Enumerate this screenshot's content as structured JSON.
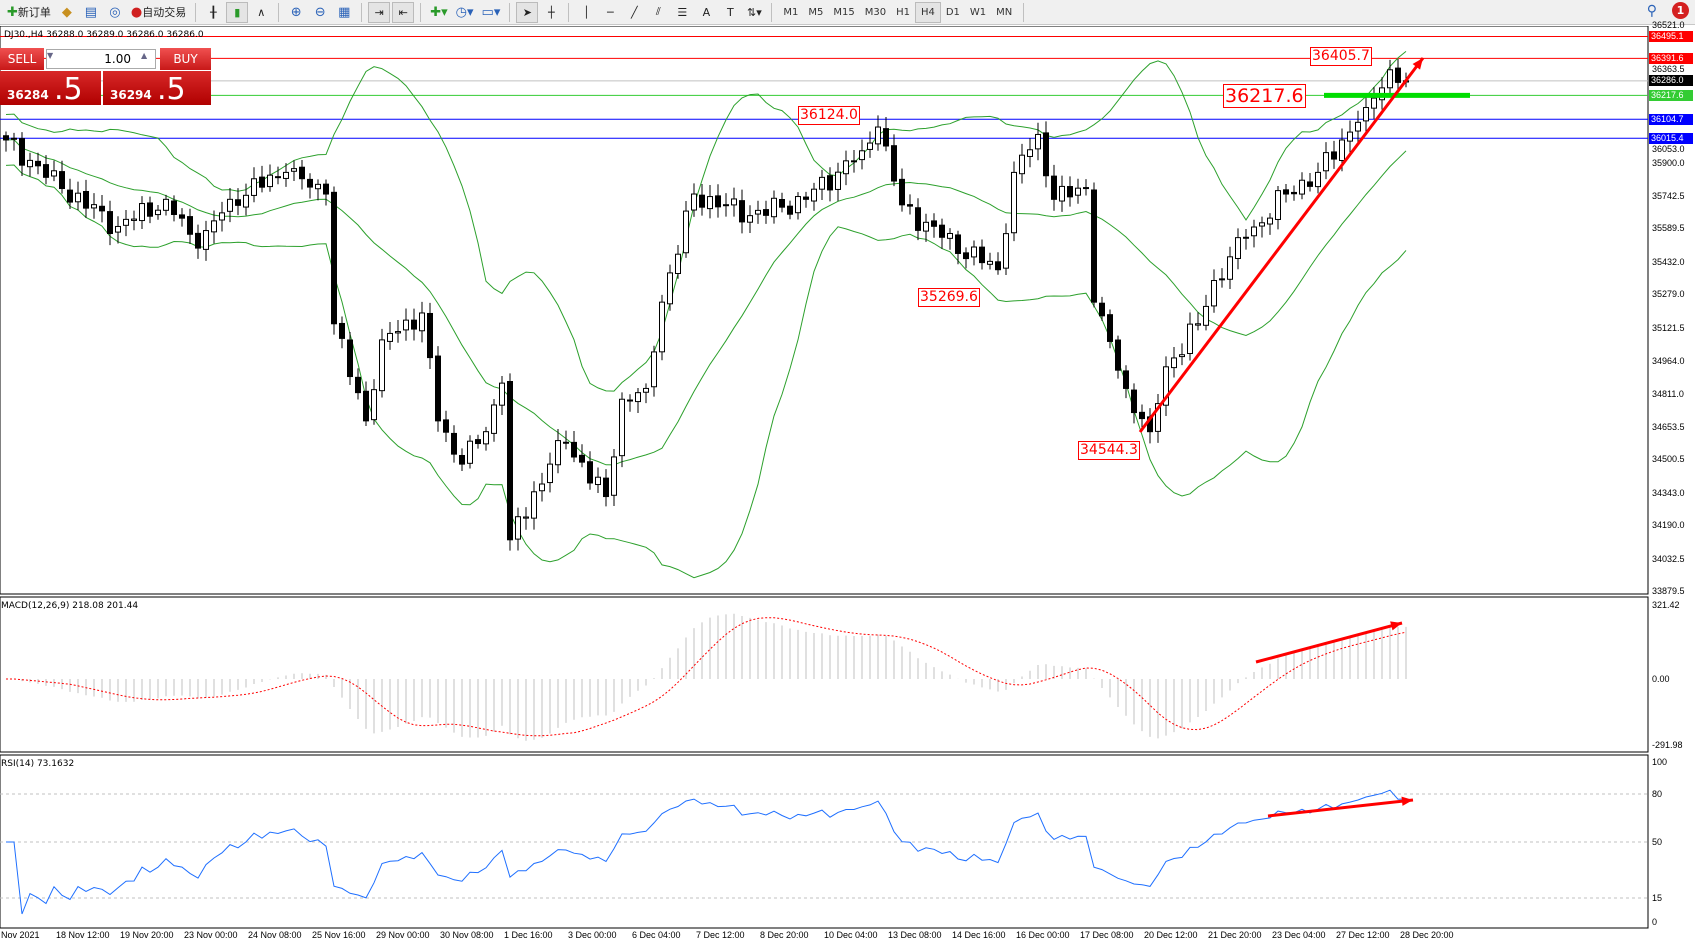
{
  "toolbar": {
    "new_order": "新订单",
    "auto_trading": "自动交易",
    "timeframes": [
      "M1",
      "M5",
      "M15",
      "M30",
      "H1",
      "H4",
      "D1",
      "W1",
      "MN"
    ],
    "selected_timeframe": "H4",
    "notifications": "1"
  },
  "chart_info": "DJ30.,H4  36288.0 36289.0 36286.0 36286.0",
  "trade_panel": {
    "sell_label": "SELL",
    "buy_label": "BUY",
    "lot": "1.00",
    "sell_big": "36284",
    "sell_small": ".5",
    "buy_big": "36294",
    "buy_small": ".5"
  },
  "price_axis": [
    "36521.0",
    "36363.5",
    "36053.0",
    "35900.0",
    "35742.5",
    "35589.5",
    "35432.0",
    "35279.0",
    "35121.5",
    "34964.0",
    "34811.0",
    "34653.5",
    "34500.5",
    "34343.0",
    "34190.0",
    "34032.5",
    "33879.5"
  ],
  "price_tags": [
    {
      "value": "36495.1",
      "color": "#ff0000"
    },
    {
      "value": "36391.6",
      "color": "#ff0000"
    },
    {
      "value": "36286.0",
      "color": "#000000"
    },
    {
      "value": "36217.6",
      "color": "#33cc33"
    },
    {
      "value": "36104.7",
      "color": "#0000ff"
    },
    {
      "value": "36015.4",
      "color": "#0000ff"
    }
  ],
  "annotations": [
    "36405.7",
    "36217.6",
    "36124.0",
    "35269.6",
    "34544.3"
  ],
  "macd": {
    "label": "MACD(12,26,9) 218.08 201.44",
    "axis": [
      "321.42",
      "0.00",
      "-291.98"
    ]
  },
  "rsi": {
    "label": "RSI(14) 73.1632",
    "axis": [
      "100",
      "80",
      "50",
      "15",
      "0"
    ]
  },
  "time_axis": [
    "Nov 2021",
    "18 Nov 12:00",
    "19 Nov 20:00",
    "23 Nov 00:00",
    "24 Nov 08:00",
    "25 Nov 16:00",
    "29 Nov 00:00",
    "30 Nov 08:00",
    "1 Dec 16:00",
    "3 Dec 00:00",
    "6 Dec 04:00",
    "7 Dec 12:00",
    "8 Dec 20:00",
    "10 Dec 04:00",
    "13 Dec 08:00",
    "14 Dec 16:00",
    "16 Dec 00:00",
    "17 Dec 08:00",
    "20 Dec 12:00",
    "21 Dec 20:00",
    "23 Dec 04:00",
    "27 Dec 12:00",
    "28 Dec 20:00"
  ],
  "chart_data": {
    "type": "candlestick",
    "symbol": "DJ30.",
    "timeframe": "H4",
    "ylim": [
      33879.5,
      36521.0
    ],
    "close_keypoints": {
      "bar": [
        0,
        7,
        14,
        20,
        24,
        28,
        35,
        40,
        41,
        45,
        47,
        52,
        54,
        57,
        60,
        62,
        63,
        68,
        70,
        75,
        77,
        80,
        82,
        86,
        93,
        100,
        107,
        109,
        112,
        117,
        124,
        126,
        129,
        131,
        135,
        136,
        140,
        143,
        145,
        149,
        151,
        155,
        160,
        164,
        167,
        170,
        173,
        175
      ],
      "close": [
        36007,
        35778,
        35599,
        35727,
        35497,
        35727,
        35854,
        35752,
        35140,
        34682,
        35064,
        35191,
        34682,
        34478,
        34631,
        34860,
        34121,
        34478,
        34580,
        34325,
        34784,
        34835,
        35242,
        35752,
        35650,
        35727,
        35956,
        36068,
        35701,
        35548,
        35395,
        35854,
        36033,
        35727,
        35778,
        35242,
        34835,
        34631,
        34937,
        35140,
        35344,
        35548,
        35752,
        35854,
        36007,
        36160,
        36338,
        36286
      ]
    },
    "indicators": [
      "Bollinger Bands",
      "MACD(12,26,9)",
      "RSI(14)"
    ],
    "band_color": "#2ca02c",
    "rsi_color": "#1e6fff",
    "macd_signal_color": "#ff0000"
  }
}
